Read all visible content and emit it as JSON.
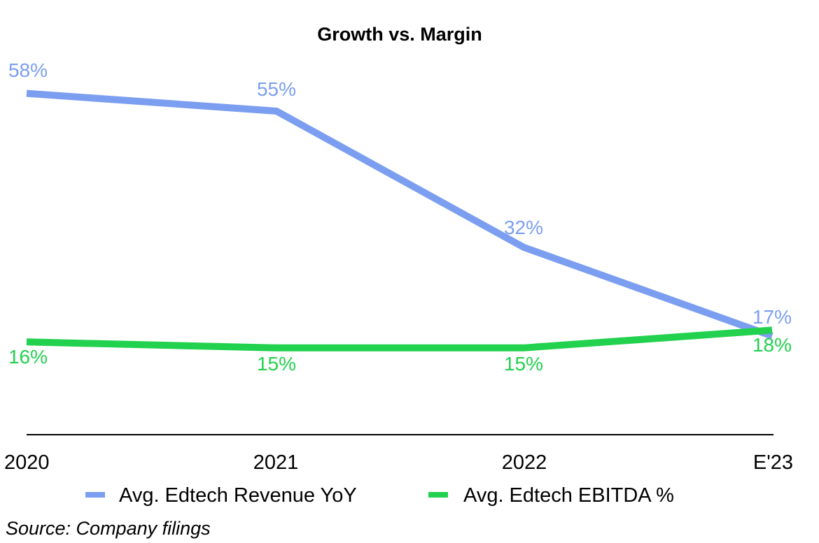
{
  "chart_data": {
    "type": "line",
    "title": "Growth vs. Margin",
    "categories": [
      "2020",
      "2021",
      "2022",
      "E'23"
    ],
    "series": [
      {
        "name": "Avg. Edtech Revenue YoY",
        "values": [
          58,
          55,
          32,
          17
        ],
        "labels": [
          "58%",
          "55%",
          "32%",
          "17%"
        ],
        "color": "#7b9ef0"
      },
      {
        "name": "Avg. Edtech EBITDA %",
        "values": [
          16,
          15,
          15,
          18
        ],
        "labels": [
          "16%",
          "15%",
          "15%",
          "18%"
        ],
        "color": "#22d14e"
      }
    ],
    "xlabel": "",
    "ylabel": "",
    "ylim": [
      0,
      65
    ],
    "grid": false,
    "legend": "bottom",
    "source": "Source: Company filings"
  }
}
